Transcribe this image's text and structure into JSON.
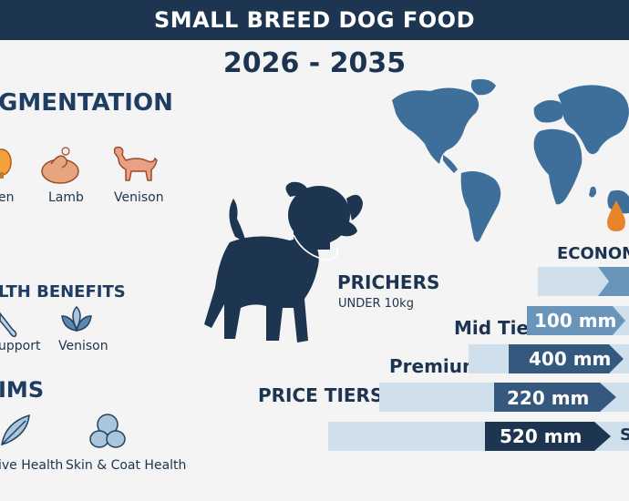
{
  "header": {
    "title": "SMALL BREED DOG FOOD",
    "years": "2026 - 2035"
  },
  "segmentation": {
    "heading": "GMENTATION",
    "items": [
      "en",
      "Lamb",
      "Venison"
    ]
  },
  "health_benefits": {
    "heading": "LTH BENEFITS",
    "items": [
      "upport",
      "Venison"
    ]
  },
  "claims": {
    "heading": "IMS",
    "items": [
      "ive Health",
      "Skin & Coat Health"
    ]
  },
  "center": {
    "title": "PRICHERS",
    "subtitle": "UNDER 10kg"
  },
  "tiers": {
    "economy": "ECONOMY",
    "mid_tier": "Mid Tier",
    "premium": "Premium",
    "price_tiers": "PRICE TIERS",
    "bars": [
      "100 mm",
      "400 mm",
      "220 mm",
      "520 mm"
    ],
    "trail": "S"
  },
  "colors": {
    "navy": "#1d3550",
    "map_blue": "#3e6f9a",
    "bar_light": "#cfe0ec",
    "bar_dark": "#35597e",
    "orange": "#e8842a"
  },
  "icons": [
    "chicken-icon",
    "lamb-leg-icon",
    "deer-icon",
    "bone-icon",
    "leaves-icon",
    "feather-icon",
    "coat-icon",
    "dog-silhouette-icon",
    "world-map-icon",
    "droplet-icon"
  ]
}
